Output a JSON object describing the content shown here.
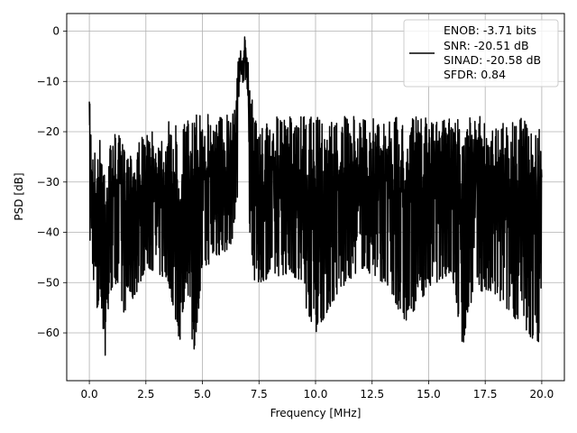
{
  "chart_data": {
    "type": "line",
    "xlabel": "Frequency [MHz]",
    "ylabel": "PSD [dB]",
    "xlim": [
      -1.0,
      21.0
    ],
    "ylim": [
      -69.5,
      3.5
    ],
    "xticks": [
      0.0,
      2.5,
      5.0,
      7.5,
      10.0,
      12.5,
      15.0,
      17.5,
      20.0
    ],
    "xtick_labels": [
      "0.0",
      "2.5",
      "5.0",
      "7.5",
      "10.0",
      "12.5",
      "15.0",
      "17.5",
      "20.0"
    ],
    "yticks": [
      0,
      -10,
      -20,
      -30,
      -40,
      -50,
      -60
    ],
    "ytick_labels": [
      "0",
      "−10",
      "−20",
      "−30",
      "−40",
      "−50",
      "−60"
    ],
    "grid": true,
    "legend_position": "top-right",
    "line_color": "#000000",
    "series": [
      {
        "name": "ENOB: -3.71 bits\nSNR: -20.51 dB\nSINAD: -20.58 dB\nSFDR: 0.84",
        "legend_lines": [
          "ENOB: -3.71 bits",
          "SNR: -20.51 dB",
          "SINAD: -20.58 dB",
          "SFDR: 0.84"
        ],
        "description_points": {
          "x": [
            0.0,
            0.02,
            0.05,
            0.1,
            0.2,
            0.35,
            0.5,
            0.7,
            0.9,
            1.2,
            1.5,
            2.0,
            2.5,
            3.0,
            3.5,
            4.0,
            4.3,
            4.6,
            5.0,
            5.5,
            6.0,
            6.3,
            6.5,
            6.6,
            6.7,
            6.8,
            6.85,
            6.9,
            7.0,
            7.1,
            7.3,
            7.5,
            8.0,
            9.0,
            10.0,
            11.0,
            12.0,
            13.0,
            14.0,
            15.0,
            16.0,
            16.5,
            17.0,
            18.0,
            19.0,
            19.5,
            20.0
          ],
          "y_upper": [
            -14,
            -10,
            -15,
            -20,
            -22,
            -24,
            -20,
            -23,
            -22,
            -20,
            -22,
            -22,
            -20,
            -20,
            -18,
            -18,
            -17,
            -17,
            -16,
            -16,
            -16,
            -14,
            -8,
            -5,
            -3,
            -1,
            0,
            -2,
            -5,
            -10,
            -14,
            -19,
            -17,
            -17,
            -17,
            -17,
            -17,
            -17,
            -17,
            -17,
            -17,
            -17,
            -17,
            -17,
            -17,
            -18,
            -20
          ],
          "y_lower": [
            -36,
            -42,
            -43,
            -45,
            -50,
            -58,
            -52,
            -66,
            -52,
            -50,
            -56,
            -53,
            -47,
            -48,
            -50,
            -62,
            -49,
            -65,
            -48,
            -45,
            -44,
            -42,
            -35,
            -33,
            -30,
            -28,
            -27,
            -28,
            -32,
            -40,
            -50,
            -50,
            -49,
            -48,
            -60,
            -52,
            -47,
            -50,
            -58,
            -51,
            -48,
            -63,
            -51,
            -53,
            -58,
            -61,
            -62
          ]
        }
      }
    ]
  }
}
